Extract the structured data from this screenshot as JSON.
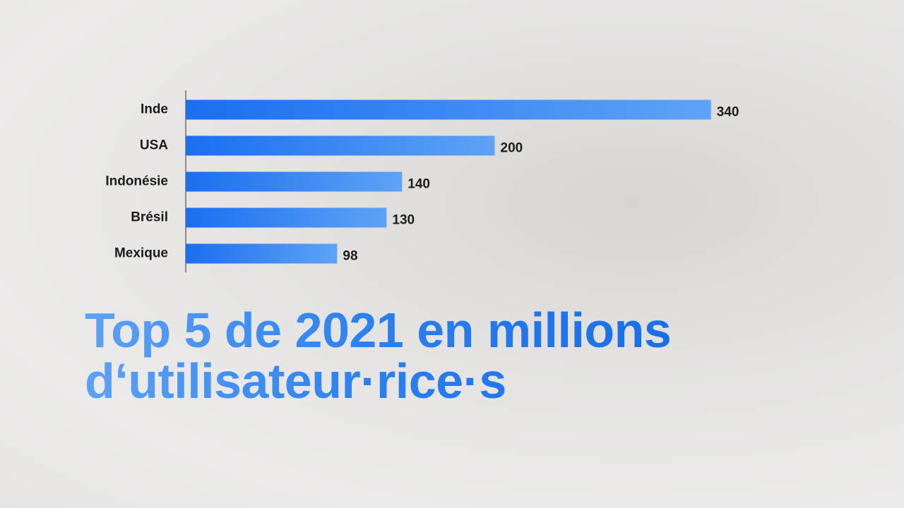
{
  "chart_data": {
    "type": "bar",
    "orientation": "horizontal",
    "title": "Top 5 de 2021 en millions\nd‘utilisateur·rice·s",
    "categories": [
      "Inde",
      "USA",
      "Indonésie",
      "Brésil",
      "Mexique"
    ],
    "values": [
      340,
      200,
      140,
      130,
      98
    ],
    "color": "#1a6ff0",
    "xlim": [
      0,
      400
    ]
  }
}
